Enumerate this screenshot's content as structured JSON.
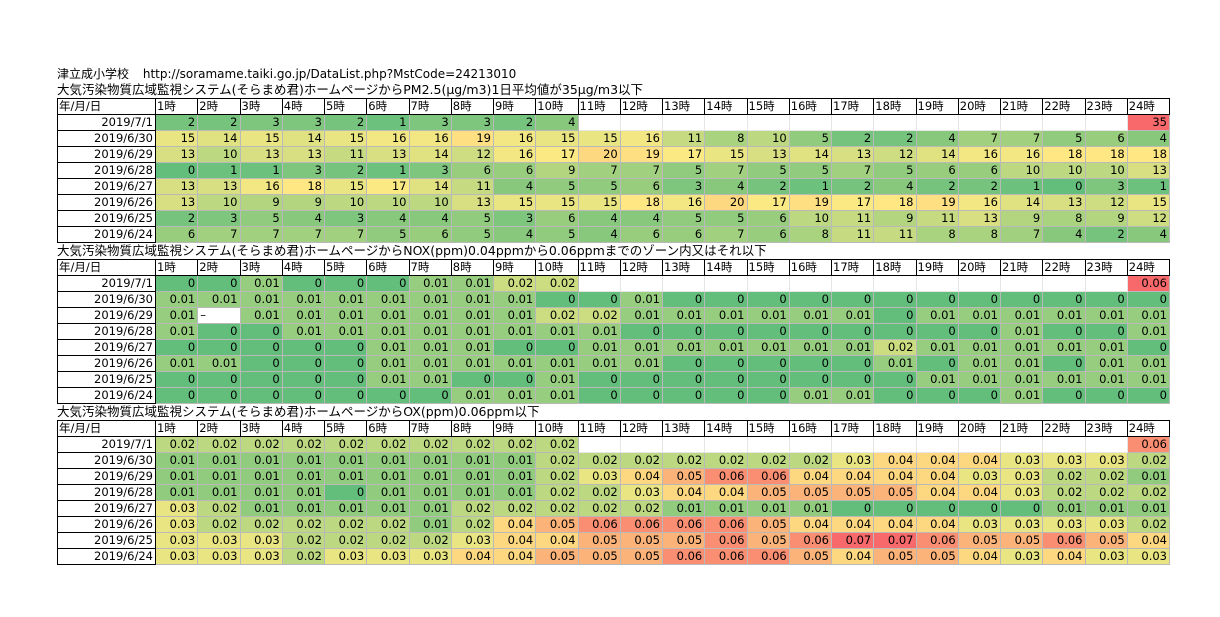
{
  "site": {
    "name": "津立成小学校",
    "url": "http://soramame.taiki.go.jp/DataList.php?MstCode=24213010"
  },
  "header": [
    "年/月/日",
    "1時",
    "2時",
    "3時",
    "4時",
    "5時",
    "6時",
    "7時",
    "8時",
    "9時",
    "10時",
    "11時",
    "12時",
    "13時",
    "14時",
    "15時",
    "16時",
    "17時",
    "18時",
    "19時",
    "20時",
    "21時",
    "22時",
    "23時",
    "24時"
  ],
  "dates": [
    "2019/7/1",
    "2019/6/30",
    "2019/6/29",
    "2019/6/28",
    "2019/6/27",
    "2019/6/26",
    "2019/6/25",
    "2019/6/24"
  ],
  "colors": {
    "low": "#63be7b",
    "mid": "#ffeb84",
    "high": "#f8696b"
  },
  "sections": [
    {
      "title": "大気汚染物質広域監視システム(そらまめ君)ホームページからPM2.5(μg/m3)1日平均値が35μg/m3以下",
      "min": 0,
      "max": 35,
      "rows": [
        [
          "2",
          "2",
          "3",
          "3",
          "2",
          "1",
          "3",
          "3",
          "2",
          "4",
          "",
          "",
          "",
          "",
          "",
          "",
          "",
          "",
          "",
          "",
          "",
          "",
          "",
          "35"
        ],
        [
          "15",
          "14",
          "15",
          "14",
          "15",
          "16",
          "16",
          "19",
          "16",
          "15",
          "15",
          "16",
          "11",
          "8",
          "10",
          "5",
          "2",
          "2",
          "4",
          "7",
          "7",
          "5",
          "6",
          "4"
        ],
        [
          "13",
          "10",
          "13",
          "13",
          "11",
          "13",
          "14",
          "12",
          "16",
          "17",
          "20",
          "19",
          "17",
          "15",
          "13",
          "14",
          "13",
          "12",
          "14",
          "16",
          "16",
          "18",
          "18",
          "18"
        ],
        [
          "0",
          "1",
          "1",
          "3",
          "2",
          "1",
          "3",
          "6",
          "6",
          "9",
          "7",
          "7",
          "5",
          "7",
          "5",
          "5",
          "7",
          "5",
          "6",
          "6",
          "10",
          "10",
          "10",
          "13"
        ],
        [
          "13",
          "13",
          "16",
          "18",
          "15",
          "17",
          "14",
          "11",
          "4",
          "5",
          "5",
          "6",
          "3",
          "4",
          "2",
          "1",
          "2",
          "4",
          "2",
          "2",
          "1",
          "0",
          "3",
          "1"
        ],
        [
          "13",
          "10",
          "9",
          "9",
          "10",
          "10",
          "10",
          "13",
          "15",
          "15",
          "15",
          "18",
          "16",
          "20",
          "17",
          "19",
          "17",
          "18",
          "19",
          "16",
          "14",
          "13",
          "12",
          "15"
        ],
        [
          "2",
          "3",
          "5",
          "4",
          "3",
          "4",
          "4",
          "5",
          "3",
          "6",
          "4",
          "4",
          "5",
          "5",
          "6",
          "10",
          "11",
          "9",
          "11",
          "13",
          "9",
          "8",
          "9",
          "12"
        ],
        [
          "6",
          "7",
          "7",
          "7",
          "7",
          "5",
          "6",
          "5",
          "4",
          "5",
          "4",
          "6",
          "6",
          "7",
          "6",
          "8",
          "11",
          "11",
          "8",
          "8",
          "7",
          "4",
          "2",
          "4"
        ]
      ]
    },
    {
      "title": "大気汚染物質広域監視システム(そらまめ君)ホームページからNOX(ppm)0.04ppmから0.06ppmまでのゾーン内又はそれ以下",
      "min": 0,
      "max": 0.06,
      "rows": [
        [
          "0",
          "0",
          "0.01",
          "0",
          "0",
          "0",
          "0.01",
          "0.01",
          "0.02",
          "0.02",
          "",
          "",
          "",
          "",
          "",
          "",
          "",
          "",
          "",
          "",
          "",
          "",
          "",
          "0.06"
        ],
        [
          "0.01",
          "0.01",
          "0.01",
          "0.01",
          "0.01",
          "0.01",
          "0.01",
          "0.01",
          "0.01",
          "0",
          "0",
          "0.01",
          "0",
          "0",
          "0",
          "0",
          "0",
          "0",
          "0",
          "0",
          "0",
          "0",
          "0",
          "0"
        ],
        [
          "0.01",
          "–",
          "0.01",
          "0.01",
          "0.01",
          "0.01",
          "0.01",
          "0.01",
          "0.01",
          "0.02",
          "0.02",
          "0.01",
          "0.01",
          "0.01",
          "0.01",
          "0.01",
          "0.01",
          "0",
          "0.01",
          "0.01",
          "0.01",
          "0.01",
          "0.01",
          "0.01"
        ],
        [
          "0.01",
          "0",
          "0",
          "0.01",
          "0.01",
          "0.01",
          "0.01",
          "0.01",
          "0.01",
          "0.01",
          "0.01",
          "0",
          "0",
          "0",
          "0",
          "0",
          "0",
          "0",
          "0",
          "0",
          "0.01",
          "0",
          "0",
          "0.01"
        ],
        [
          "0",
          "0",
          "0",
          "0",
          "0",
          "0.01",
          "0.01",
          "0.01",
          "0",
          "0",
          "0.01",
          "0.01",
          "0.01",
          "0.01",
          "0.01",
          "0.01",
          "0.01",
          "0.02",
          "0.01",
          "0.01",
          "0.01",
          "0.01",
          "0.01",
          "0"
        ],
        [
          "0.01",
          "0.01",
          "0",
          "0",
          "0",
          "0.01",
          "0.01",
          "0.01",
          "0.01",
          "0.01",
          "0.01",
          "0.01",
          "0",
          "0",
          "0",
          "0",
          "0",
          "0.01",
          "0",
          "0.01",
          "0.01",
          "0",
          "0.01",
          "0.01"
        ],
        [
          "0",
          "0",
          "0",
          "0",
          "0",
          "0.01",
          "0.01",
          "0",
          "0",
          "0.01",
          "0",
          "0",
          "0",
          "0",
          "0",
          "0",
          "0",
          "0",
          "0.01",
          "0.01",
          "0.01",
          "0.01",
          "0.01",
          "0.01"
        ],
        [
          "0",
          "0",
          "0",
          "0",
          "0",
          "0",
          "0",
          "0.01",
          "0.01",
          "0.01",
          "0",
          "0",
          "0",
          "0",
          "0",
          "0.01",
          "0.01",
          "0",
          "0",
          "0",
          "0.01",
          "0",
          "0",
          "0"
        ]
      ]
    },
    {
      "title": "大気汚染物質広域監視システム(そらまめ君)ホームページからOX(ppm)0.06ppm以下",
      "min": 0,
      "max": 0.07,
      "rows": [
        [
          "0.02",
          "0.02",
          "0.02",
          "0.02",
          "0.02",
          "0.02",
          "0.02",
          "0.02",
          "0.02",
          "0.02",
          "",
          "",
          "",
          "",
          "",
          "",
          "",
          "",
          "",
          "",
          "",
          "",
          "",
          "0.06"
        ],
        [
          "0.01",
          "0.01",
          "0.01",
          "0.01",
          "0.01",
          "0.01",
          "0.01",
          "0.01",
          "0.01",
          "0.02",
          "0.02",
          "0.02",
          "0.02",
          "0.02",
          "0.02",
          "0.02",
          "0.03",
          "0.04",
          "0.04",
          "0.04",
          "0.03",
          "0.03",
          "0.03",
          "0.02"
        ],
        [
          "0.01",
          "0.01",
          "0.01",
          "0.01",
          "0.01",
          "0.01",
          "0.01",
          "0.01",
          "0.01",
          "0.02",
          "0.03",
          "0.04",
          "0.05",
          "0.06",
          "0.06",
          "0.04",
          "0.04",
          "0.04",
          "0.04",
          "0.03",
          "0.03",
          "0.02",
          "0.02",
          "0.01"
        ],
        [
          "0.01",
          "0.01",
          "0.01",
          "0.01",
          "0",
          "0.01",
          "0.01",
          "0.01",
          "0.01",
          "0.02",
          "0.02",
          "0.03",
          "0.04",
          "0.04",
          "0.05",
          "0.05",
          "0.05",
          "0.05",
          "0.04",
          "0.04",
          "0.03",
          "0.02",
          "0.02",
          "0.02"
        ],
        [
          "0.03",
          "0.02",
          "0.01",
          "0.01",
          "0.01",
          "0.01",
          "0.01",
          "0.02",
          "0.02",
          "0.02",
          "0.02",
          "0.02",
          "0.01",
          "0.01",
          "0.01",
          "0.01",
          "0",
          "0",
          "0",
          "0",
          "0",
          "0.01",
          "0.01",
          "0.01"
        ],
        [
          "0.03",
          "0.02",
          "0.02",
          "0.02",
          "0.02",
          "0.02",
          "0.01",
          "0.02",
          "0.04",
          "0.05",
          "0.06",
          "0.06",
          "0.06",
          "0.06",
          "0.05",
          "0.04",
          "0.04",
          "0.04",
          "0.04",
          "0.03",
          "0.03",
          "0.03",
          "0.03",
          "0.02"
        ],
        [
          "0.03",
          "0.03",
          "0.03",
          "0.02",
          "0.02",
          "0.02",
          "0.02",
          "0.03",
          "0.04",
          "0.04",
          "0.05",
          "0.05",
          "0.05",
          "0.06",
          "0.05",
          "0.06",
          "0.07",
          "0.07",
          "0.06",
          "0.05",
          "0.05",
          "0.06",
          "0.05",
          "0.04"
        ],
        [
          "0.03",
          "0.03",
          "0.03",
          "0.02",
          "0.03",
          "0.03",
          "0.03",
          "0.04",
          "0.04",
          "0.05",
          "0.05",
          "0.05",
          "0.06",
          "0.06",
          "0.06",
          "0.05",
          "0.04",
          "0.05",
          "0.05",
          "0.04",
          "0.03",
          "0.04",
          "0.03",
          "0.03"
        ]
      ]
    }
  ]
}
